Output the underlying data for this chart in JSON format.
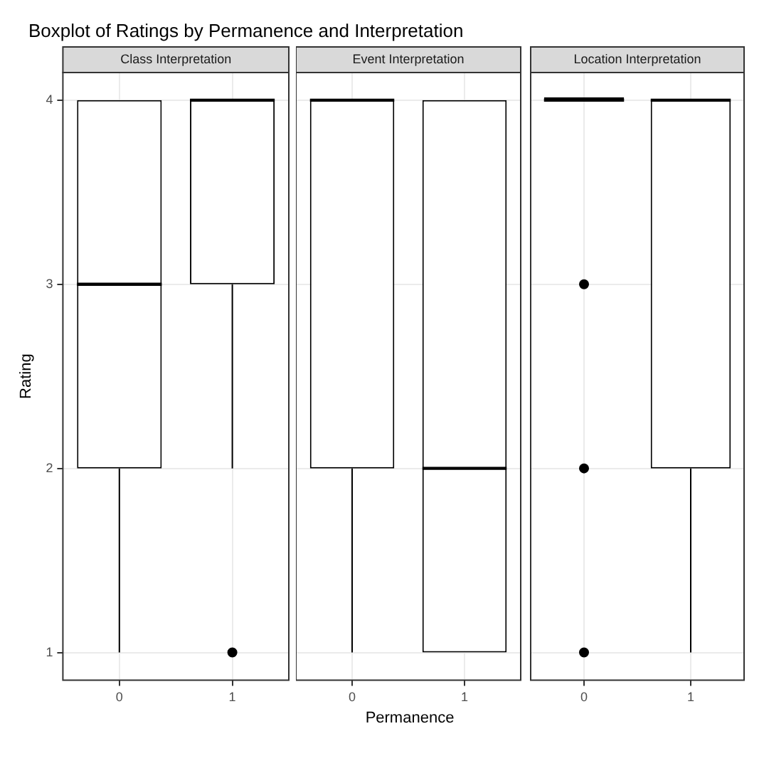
{
  "chart_data": [
    {
      "type": "box",
      "title": "Boxplot of Ratings by Permanence and Interpretation",
      "subtitle": "Class Interpretation",
      "ylabel": "Rating",
      "categories": [
        "0",
        "1"
      ],
      "ylim": [
        0.85,
        4.15
      ],
      "yticks": [
        1,
        2,
        3,
        4
      ],
      "grid": true,
      "legend": false,
      "color": "#000000",
      "boxes": [
        {
          "low": 1,
          "q1": 2,
          "median": 3,
          "q3": 4,
          "high": 4
        },
        {
          "low": 2,
          "q1": 3,
          "median": 4,
          "q3": 4,
          "high": 4,
          "outliers": [
            1
          ]
        }
      ]
    },
    {
      "type": "box",
      "subtitle": "Event Interpretation",
      "xlabel": "Permanence",
      "categories": [
        "0",
        "1"
      ],
      "ylim": [
        0.85,
        4.15
      ],
      "yticks": [
        1,
        2,
        3,
        4
      ],
      "grid": true,
      "legend": false,
      "tick_labels": "x",
      "color": "#000000",
      "boxes": [
        {
          "low": 1,
          "q1": 2,
          "median": 4,
          "q3": 4,
          "high": 4
        },
        {
          "low": 1,
          "q1": 1,
          "median": 2,
          "q3": 4,
          "high": 4
        }
      ]
    },
    {
      "type": "box",
      "subtitle": "Location Interpretation",
      "categories": [
        "0",
        "1"
      ],
      "ylim": [
        0.85,
        4.15
      ],
      "yticks": [
        1,
        2,
        3,
        4
      ],
      "grid": true,
      "legend": false,
      "tick_labels": "x",
      "color": "#000000",
      "boxes": [
        {
          "low": 4,
          "q1": 4,
          "median": 4,
          "q3": 4,
          "high": 4,
          "outliers": [
            3,
            2,
            1
          ]
        },
        {
          "low": 1,
          "q1": 2,
          "median": 4,
          "q3": 4,
          "high": 4
        }
      ]
    }
  ]
}
